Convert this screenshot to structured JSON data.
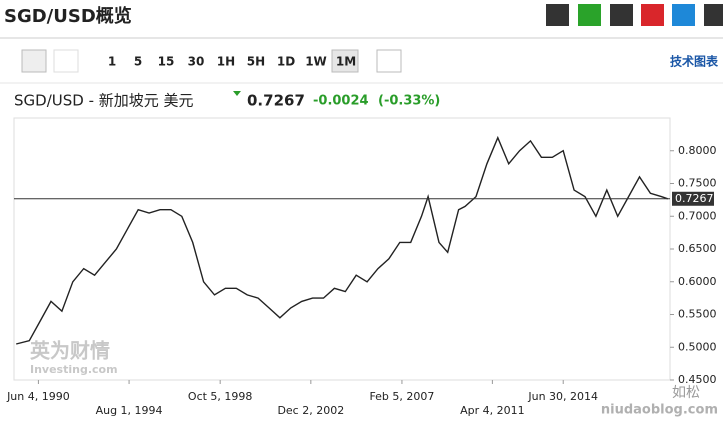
{
  "header": {
    "title": "SGD/USD概览"
  },
  "toolbar": {
    "intervals": [
      "1",
      "5",
      "15",
      "30",
      "1H",
      "5H",
      "1D",
      "1W",
      "1M"
    ],
    "tech_chart": "技术图表"
  },
  "quote": {
    "name": "SGD/USD - 新加坡元 美元",
    "price": "0.7267",
    "change": "-0.0024",
    "change_pct": "(-0.33%)"
  },
  "watermarks": [
    "英为财情",
    "Investing.com",
    "如松",
    "niudaoblog.com"
  ],
  "chart_data": {
    "type": "line",
    "color": "#222222",
    "current_price": 0.7267,
    "current_color": "#333333",
    "x": [
      1989.4,
      1990,
      1990.5,
      1991,
      1991.5,
      1992,
      1992.5,
      1993,
      1993.5,
      1994,
      1994.5,
      1995,
      1995.5,
      1996,
      1996.5,
      1997,
      1997.5,
      1998,
      1998.5,
      1999,
      1999.5,
      2000,
      2000.5,
      2001,
      2001.5,
      2002,
      2002.5,
      2003,
      2003.5,
      2004,
      2004.5,
      2005,
      2005.5,
      2006,
      2006.5,
      2007,
      2007.5,
      2008,
      2008.3,
      2008.8,
      2009.2,
      2009.7,
      2010,
      2010.5,
      2011,
      2011.5,
      2012,
      2012.5,
      2013,
      2013.5,
      2014,
      2014.5,
      2015,
      2015.5,
      2016,
      2016.5,
      2017,
      2017.5,
      2018,
      2018.5,
      2019,
      2019.3
    ],
    "values": [
      0.505,
      0.51,
      0.54,
      0.57,
      0.555,
      0.6,
      0.62,
      0.61,
      0.63,
      0.65,
      0.68,
      0.71,
      0.705,
      0.71,
      0.71,
      0.7,
      0.66,
      0.6,
      0.58,
      0.59,
      0.59,
      0.58,
      0.575,
      0.56,
      0.545,
      0.56,
      0.57,
      0.575,
      0.575,
      0.59,
      0.585,
      0.61,
      0.6,
      0.62,
      0.635,
      0.66,
      0.66,
      0.7,
      0.73,
      0.66,
      0.645,
      0.71,
      0.715,
      0.73,
      0.78,
      0.82,
      0.78,
      0.8,
      0.815,
      0.79,
      0.79,
      0.8,
      0.74,
      0.73,
      0.7,
      0.74,
      0.7,
      0.73,
      0.76,
      0.735,
      0.73,
      0.7267
    ],
    "xlim": [
      1989.3,
      2019.4
    ],
    "xticks": [
      {
        "value": 1990.42,
        "label": "Jun 4, 1990"
      },
      {
        "value": 1994.58,
        "label": "Aug 1, 1994"
      },
      {
        "value": 1998.76,
        "label": "Oct 5, 1998"
      },
      {
        "value": 2002.92,
        "label": "Dec 2, 2002"
      },
      {
        "value": 2007.1,
        "label": "Feb 5, 2007"
      },
      {
        "value": 2011.25,
        "label": "Apr 4, 2011"
      },
      {
        "value": 2014.5,
        "label": "Jun 30, 2014"
      }
    ],
    "ylim": [
      0.45,
      0.85
    ],
    "yticks": [
      {
        "value": 0.45,
        "label": "0.4500"
      },
      {
        "value": 0.5,
        "label": "0.5000"
      },
      {
        "value": 0.55,
        "label": "0.5500"
      },
      {
        "value": 0.6,
        "label": "0.6000"
      },
      {
        "value": 0.65,
        "label": "0.6500"
      },
      {
        "value": 0.7,
        "label": "0.7000"
      },
      {
        "value": 0.75,
        "label": "0.7500"
      },
      {
        "value": 0.8,
        "label": "0.8000"
      }
    ]
  }
}
